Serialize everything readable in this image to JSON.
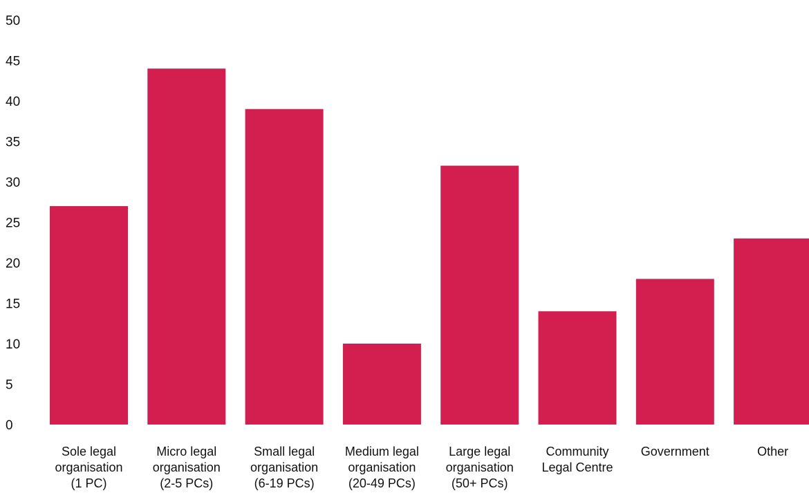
{
  "chart_data": {
    "type": "bar",
    "title": "",
    "xlabel": "",
    "ylabel": "",
    "ylim": [
      0,
      50
    ],
    "yticks": [
      0,
      5,
      10,
      15,
      20,
      25,
      30,
      35,
      40,
      45,
      50
    ],
    "grid": false,
    "legend": "none",
    "bar_color": "#d21f50",
    "categories": [
      [
        "Sole legal",
        "organisation",
        "(1 PC)"
      ],
      [
        "Micro legal",
        "organisation",
        "(2-5 PCs)"
      ],
      [
        "Small legal",
        "organisation",
        "(6-19 PCs)"
      ],
      [
        "Medium legal",
        "organisation",
        "(20-49 PCs)"
      ],
      [
        "Large legal",
        "organisation",
        "(50+ PCs)"
      ],
      [
        "Community",
        "Legal Centre"
      ],
      [
        "Government"
      ],
      [
        "Other"
      ]
    ],
    "values": [
      27,
      44,
      39,
      10,
      32,
      14,
      18,
      23
    ]
  }
}
